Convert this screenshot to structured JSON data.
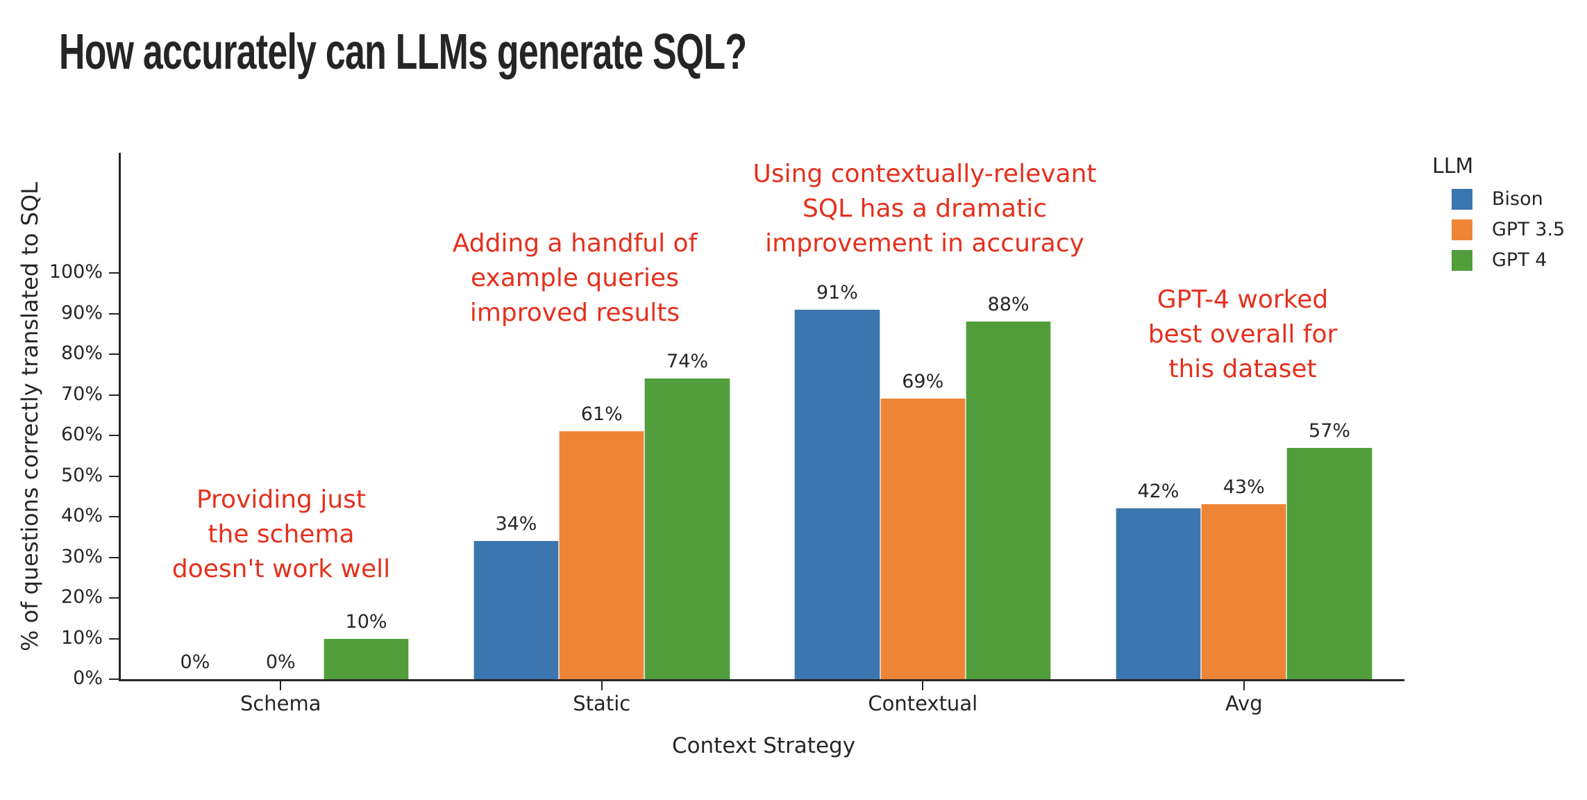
{
  "title": "How accurately can LLMs generate SQL?",
  "chart_data": {
    "type": "bar",
    "title": "How accurately can LLMs generate SQL?",
    "xlabel": "Context Strategy",
    "ylabel": "% of questions correctly translated to SQL",
    "categories": [
      "Schema",
      "Static",
      "Contextual",
      "Avg"
    ],
    "series": [
      {
        "name": "Bison",
        "color": "#3B76AF",
        "values": [
          0,
          34,
          91,
          42
        ]
      },
      {
        "name": "GPT 3.5",
        "color": "#EE8536",
        "values": [
          0,
          61,
          69,
          43
        ]
      },
      {
        "name": "GPT 4",
        "color": "#529E3D",
        "values": [
          10,
          74,
          88,
          57
        ]
      }
    ],
    "bar_labels": [
      [
        "0%",
        "34%",
        "91%",
        "42%"
      ],
      [
        "0%",
        "61%",
        "69%",
        "43%"
      ],
      [
        "10%",
        "74%",
        "88%",
        "57%"
      ]
    ],
    "ylim": [
      0,
      130
    ],
    "ytick_labels": [
      "0%",
      "10%",
      "20%",
      "30%",
      "40%",
      "50%",
      "60%",
      "70%",
      "80%",
      "90%",
      "100%"
    ],
    "grid": false,
    "legend_position": "right",
    "annotation_color": "#E5301D",
    "annotations": [
      {
        "lines": [
          "Providing just",
          "the schema",
          "doesn't work well"
        ],
        "anchor_category": "Schema"
      },
      {
        "lines": [
          "Adding a handful of",
          "example queries",
          "improved results"
        ],
        "anchor_category": "Static"
      },
      {
        "lines": [
          "Using contextually-relevant",
          "SQL has a dramatic",
          "improvement in accuracy"
        ],
        "anchor_category": "Contextual"
      },
      {
        "lines": [
          "GPT-4 worked",
          "best overall for",
          "this dataset"
        ],
        "anchor_category": "Avg"
      }
    ]
  },
  "legend": {
    "title": "LLM",
    "items": [
      {
        "label": "Bison",
        "color": "#3B76AF"
      },
      {
        "label": "GPT 3.5",
        "color": "#EE8536"
      },
      {
        "label": "GPT 4",
        "color": "#529E3D"
      }
    ]
  }
}
